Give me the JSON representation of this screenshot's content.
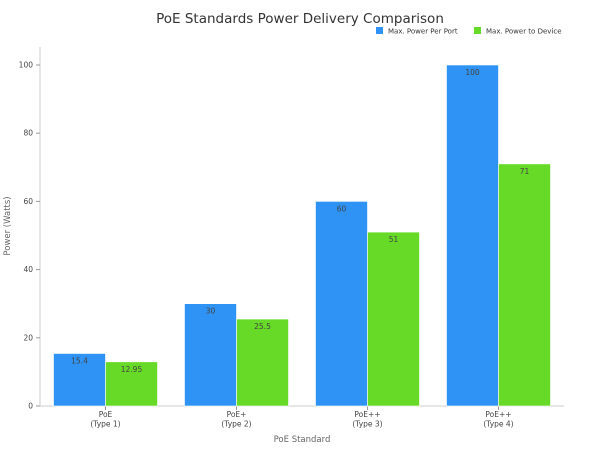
{
  "chart_data": {
    "type": "bar",
    "title": "PoE Standards Power Delivery Comparison",
    "xlabel": "PoE Standard",
    "ylabel": "Power (Watts)",
    "categories": [
      [
        "PoE",
        "(Type 1)"
      ],
      [
        "PoE+",
        "(Type 2)"
      ],
      [
        "PoE++",
        "(Type 3)"
      ],
      [
        "PoE++",
        "(Type 4)"
      ]
    ],
    "series": [
      {
        "name": "Max. Power Per Port",
        "color": "#2e93f5",
        "values": [
          15.4,
          30,
          60,
          100
        ],
        "labels": [
          "15.4",
          "30",
          "60",
          "100"
        ]
      },
      {
        "name": "Max. Power to Device",
        "color": "#66da26",
        "values": [
          12.95,
          25.5,
          51,
          71
        ],
        "labels": [
          "12.95",
          "25.5",
          "51",
          "71"
        ]
      }
    ],
    "ylim": [
      0,
      100
    ],
    "yticks": [
      0,
      20,
      40,
      60,
      80,
      100
    ],
    "grid": false,
    "legend_position": "top-right"
  }
}
